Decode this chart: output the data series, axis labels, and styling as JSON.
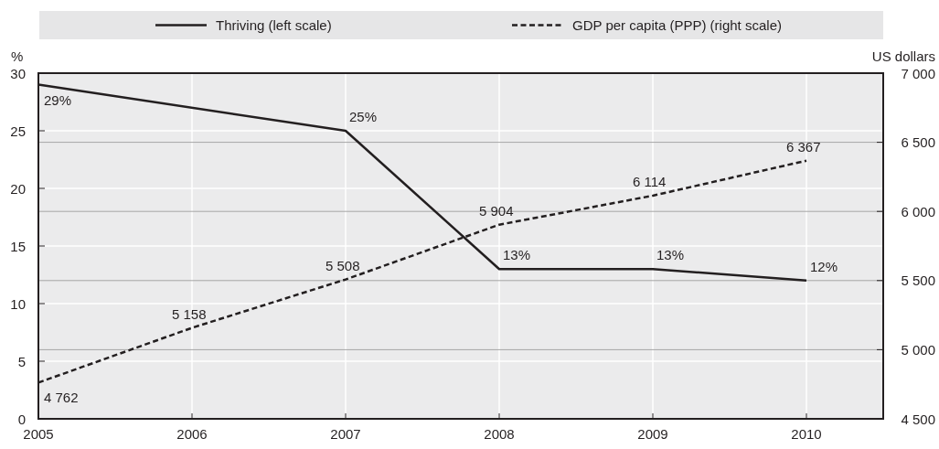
{
  "chart_data": {
    "type": "line",
    "ylabel": "%",
    "y2label": "US dollars",
    "xlim": [
      2005,
      2010.5
    ],
    "xticks": [
      2005,
      2006,
      2007,
      2008,
      2009,
      2010
    ],
    "ylim": [
      0,
      30
    ],
    "yticks": [
      0,
      5,
      10,
      15,
      20,
      25,
      30
    ],
    "y2lim": [
      4500,
      7000
    ],
    "y2ticks": [
      {
        "value": 4500,
        "label": "4 500"
      },
      {
        "value": 5000,
        "label": "5 000"
      },
      {
        "value": 5500,
        "label": "5 500"
      },
      {
        "value": 6000,
        "label": "6 000"
      },
      {
        "value": 6500,
        "label": "6 500"
      },
      {
        "value": 7000,
        "label": "7 000"
      }
    ],
    "grid": true,
    "legend": "top",
    "marker": "none",
    "series": [
      {
        "name": "Thriving (left scale)",
        "color": "#231f20",
        "line_style": "solid",
        "x": [
          2005,
          2007,
          2008,
          2009,
          2010
        ],
        "values": [
          29,
          25,
          13,
          13,
          12
        ],
        "value_labels": [
          "29%",
          "25%",
          "13%",
          "13%",
          "12%"
        ]
      },
      {
        "name": "GDP per capita (PPP) (right scale)",
        "color": "#231f20",
        "line_style": "dashed",
        "axis": "y2",
        "x": [
          2005,
          2006,
          2007,
          2008,
          2009,
          2010
        ],
        "values": [
          4762,
          5158,
          5508,
          5904,
          6114,
          6367
        ],
        "value_labels": [
          "4 762",
          "5 158",
          "5 508",
          "5 904",
          "6 114",
          "6 367"
        ]
      }
    ]
  }
}
